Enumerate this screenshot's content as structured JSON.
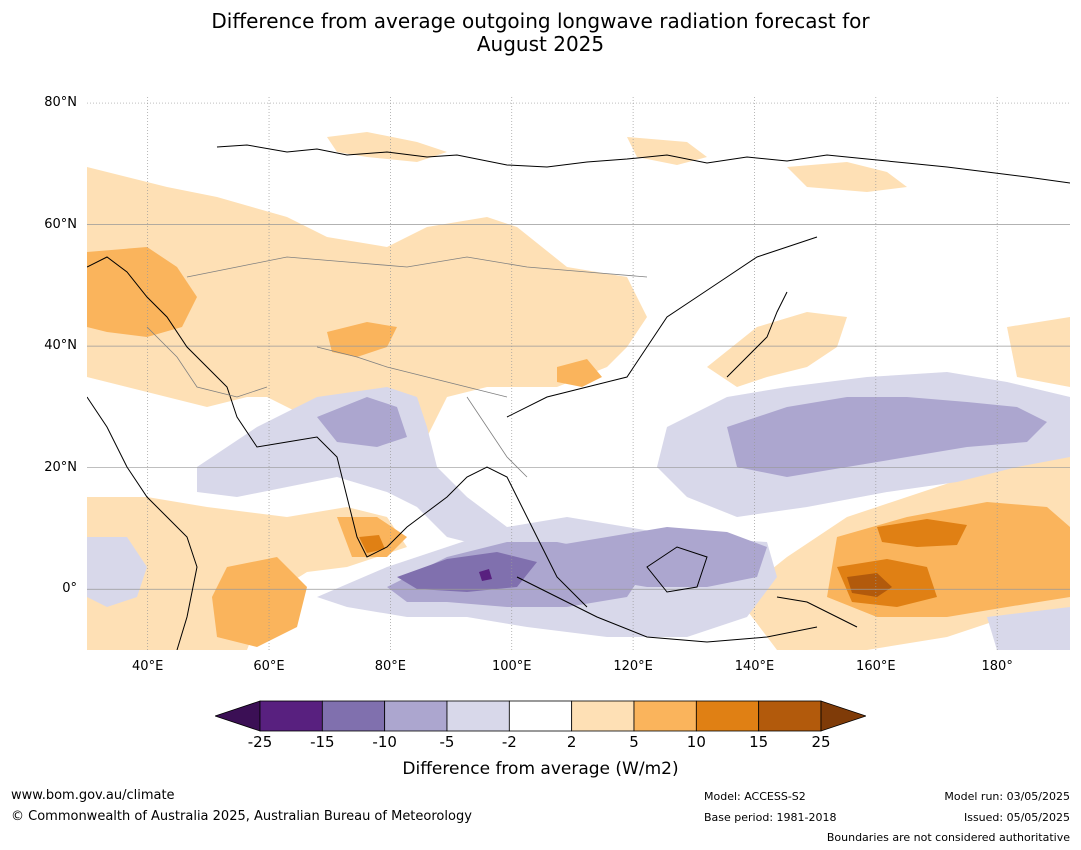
{
  "title_line1": "Difference from average outgoing longwave radiation forecast for",
  "title_line2": "August 2025",
  "y_ticks": [
    "80°N",
    "60°N",
    "40°N",
    "20°N",
    "0°"
  ],
  "x_ticks": [
    "40°E",
    "60°E",
    "80°E",
    "100°E",
    "120°E",
    "140°E",
    "160°E",
    "180°"
  ],
  "colorbar": {
    "ticks": [
      "-25",
      "-15",
      "-10",
      "-5",
      "-2",
      "2",
      "5",
      "10",
      "15",
      "25"
    ],
    "colors": [
      "#3b0f55",
      "#58207f",
      "#8070ae",
      "#aca6cf",
      "#d8d8ea",
      "#ffffff",
      "#fee0b5",
      "#fab45c",
      "#e08014",
      "#b25a0c",
      "#7f3b08"
    ],
    "label": "Difference from average (W/m2)"
  },
  "footer": {
    "url": "www.bom.gov.au/climate",
    "copyright": "© Commonwealth of Australia 2025, Australian Bureau of Meteorology",
    "model": "Model: ACCESS-S2",
    "base_period": "Base period: 1981-2018",
    "model_run": "Model run: 03/05/2025",
    "issued": "Issued: 05/05/2025",
    "disclaimer": "Boundaries are not considered authoritative"
  },
  "map": {
    "extent": {
      "lon_min": 30,
      "lon_max": 192,
      "lat_min": -10,
      "lat_max": 81
    },
    "grid_lons": [
      40,
      60,
      80,
      100,
      120,
      140,
      160,
      180
    ],
    "grid_lats": [
      80,
      60,
      40,
      20,
      0
    ],
    "colors": {
      "neg25": "#3b0f55",
      "neg15": "#58207f",
      "neg10": "#8070ae",
      "neg5": "#aca6cf",
      "neg2": "#d8d8ea",
      "pos2": "#fee0b5",
      "pos5": "#fab45c",
      "pos10": "#e08014",
      "pos15": "#b25a0c",
      "coast": "#000000",
      "border": "#808080",
      "grid": "#999999"
    }
  }
}
